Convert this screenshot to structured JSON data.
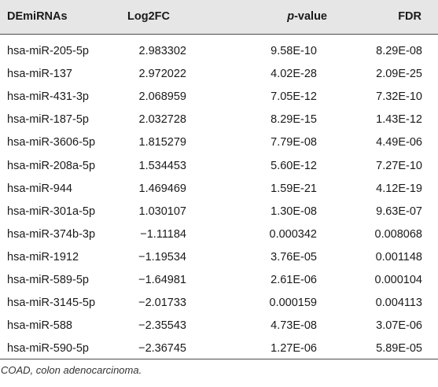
{
  "table": {
    "headers": {
      "col0": "DEmiRNAs",
      "col1": "Log2FC",
      "col2_italic": "p",
      "col2_rest": "-value",
      "col3": "FDR"
    },
    "rows": [
      {
        "mirna": "hsa-miR-205-5p",
        "log2fc": "2.983302",
        "pvalue": "9.58E-10",
        "fdr": "8.29E-08"
      },
      {
        "mirna": "hsa-miR-137",
        "log2fc": "2.972022",
        "pvalue": "4.02E-28",
        "fdr": "2.09E-25"
      },
      {
        "mirna": "hsa-miR-431-3p",
        "log2fc": "2.068959",
        "pvalue": "7.05E-12",
        "fdr": "7.32E-10"
      },
      {
        "mirna": "hsa-miR-187-5p",
        "log2fc": "2.032728",
        "pvalue": "8.29E-15",
        "fdr": "1.43E-12"
      },
      {
        "mirna": "hsa-miR-3606-5p",
        "log2fc": "1.815279",
        "pvalue": "7.79E-08",
        "fdr": "4.49E-06"
      },
      {
        "mirna": "hsa-miR-208a-5p",
        "log2fc": "1.534453",
        "pvalue": "5.60E-12",
        "fdr": "7.27E-10"
      },
      {
        "mirna": "hsa-miR-944",
        "log2fc": "1.469469",
        "pvalue": "1.59E-21",
        "fdr": "4.12E-19"
      },
      {
        "mirna": "hsa-miR-301a-5p",
        "log2fc": "1.030107",
        "pvalue": "1.30E-08",
        "fdr": "9.63E-07"
      },
      {
        "mirna": "hsa-miR-374b-3p",
        "log2fc": "−1.11184",
        "pvalue": "0.000342",
        "fdr": "0.008068"
      },
      {
        "mirna": "hsa-miR-1912",
        "log2fc": "−1.19534",
        "pvalue": "3.76E-05",
        "fdr": "0.001148"
      },
      {
        "mirna": "hsa-miR-589-5p",
        "log2fc": "−1.64981",
        "pvalue": "2.61E-06",
        "fdr": "0.000104"
      },
      {
        "mirna": "hsa-miR-3145-5p",
        "log2fc": "−2.01733",
        "pvalue": "0.000159",
        "fdr": "0.004113"
      },
      {
        "mirna": "hsa-miR-588",
        "log2fc": "−2.35543",
        "pvalue": "4.73E-08",
        "fdr": "3.07E-06"
      },
      {
        "mirna": "hsa-miR-590-5p",
        "log2fc": "−2.36745",
        "pvalue": "1.27E-06",
        "fdr": "5.89E-05"
      }
    ],
    "footnote": "COAD, colon adenocarcinoma."
  }
}
